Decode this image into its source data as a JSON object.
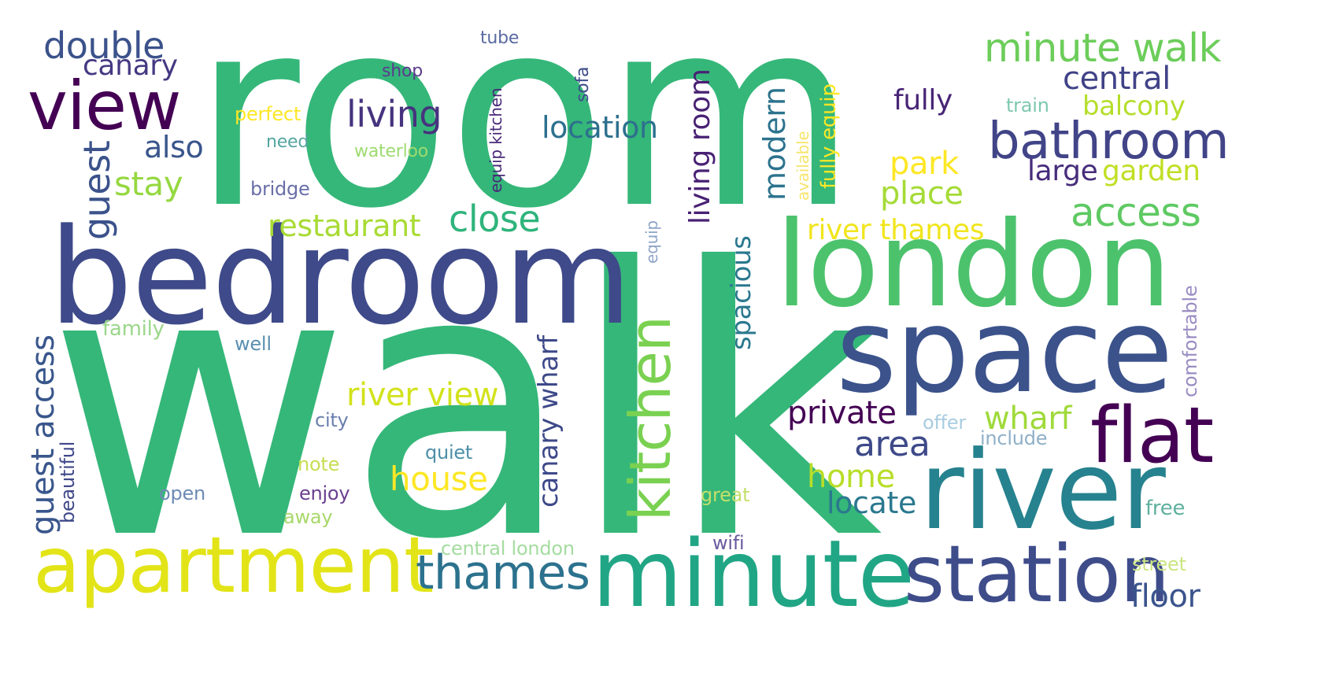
{
  "words": [
    {
      "text": "room",
      "color": "#35b779"
    },
    {
      "text": "walk",
      "color": "#35b779"
    },
    {
      "text": "bedroom",
      "color": "#3e4a89"
    },
    {
      "text": "london",
      "color": "#4cc26c"
    },
    {
      "text": "space",
      "color": "#3b528b"
    },
    {
      "text": "river",
      "color": "#26828e"
    },
    {
      "text": "minute",
      "color": "#21a685"
    },
    {
      "text": "station",
      "color": "#3e4c8a"
    },
    {
      "text": "apartment",
      "color": "#e2e418"
    },
    {
      "text": "kitchen",
      "color": "#7ad151"
    },
    {
      "text": "flat",
      "color": "#440154"
    },
    {
      "text": "view",
      "color": "#440154"
    },
    {
      "text": "bathroom",
      "color": "#414487"
    },
    {
      "text": "minute walk",
      "color": "#6ccd5a"
    },
    {
      "text": "thames",
      "color": "#2c728e"
    },
    {
      "text": "double",
      "color": "#3b528b"
    },
    {
      "text": "canary",
      "color": "#443983"
    },
    {
      "text": "central",
      "color": "#404387"
    },
    {
      "text": "living",
      "color": "#46337e"
    },
    {
      "text": "location",
      "color": "#2d708e"
    },
    {
      "text": "fully",
      "color": "#482576"
    },
    {
      "text": "balcony",
      "color": "#b5de2b"
    },
    {
      "text": "also",
      "color": "#39558c"
    },
    {
      "text": "stay",
      "color": "#95d840"
    },
    {
      "text": "park",
      "color": "#fde725"
    },
    {
      "text": "large",
      "color": "#472d7b"
    },
    {
      "text": "garden",
      "color": "#c0df25"
    },
    {
      "text": "place",
      "color": "#a5db36"
    },
    {
      "text": "access",
      "color": "#5ec962"
    },
    {
      "text": "close",
      "color": "#2fb47c"
    },
    {
      "text": "restaurant",
      "color": "#a8db34"
    },
    {
      "text": "river thames",
      "color": "#f1e51d"
    },
    {
      "text": "river view",
      "color": "#d2e21b"
    },
    {
      "text": "private",
      "color": "#440154"
    },
    {
      "text": "wharf",
      "color": "#9fda3a"
    },
    {
      "text": "area",
      "color": "#3e4a89"
    },
    {
      "text": "house",
      "color": "#fde725"
    },
    {
      "text": "home",
      "color": "#b8de29"
    },
    {
      "text": "locate",
      "color": "#2a788e"
    },
    {
      "text": "floor",
      "color": "#3a548c"
    },
    {
      "text": "guest",
      "color": "#3b528b"
    },
    {
      "text": "guest access",
      "color": "#39568c"
    },
    {
      "text": "beautiful",
      "color": "#3f4889"
    },
    {
      "text": "living room",
      "color": "#482173"
    },
    {
      "text": "modern",
      "color": "#2c738e"
    },
    {
      "text": "spacious",
      "color": "#2a788e"
    },
    {
      "text": "canary wharf",
      "color": "#3e4989"
    },
    {
      "text": "equip kitchen",
      "color": "#482878"
    },
    {
      "text": "sofa",
      "color": "#3e4c8a"
    },
    {
      "text": "tube",
      "color": "#5a6aa0"
    },
    {
      "text": "shop",
      "color": "#5b3b8c"
    },
    {
      "text": "perfect",
      "color": "#fde725"
    },
    {
      "text": "need",
      "color": "#54a5a0"
    },
    {
      "text": "waterloo",
      "color": "#9edb70"
    },
    {
      "text": "bridge",
      "color": "#6a6fa8"
    },
    {
      "text": "train",
      "color": "#7ec8b0"
    },
    {
      "text": "available",
      "color": "#f5e56a"
    },
    {
      "text": "fully equip",
      "color": "#fde725"
    },
    {
      "text": "equip",
      "color": "#8ea4c8"
    },
    {
      "text": "family",
      "color": "#9bd78b"
    },
    {
      "text": "well",
      "color": "#5a8fb0"
    },
    {
      "text": "city",
      "color": "#6a7fae"
    },
    {
      "text": "quiet",
      "color": "#4e8fa8"
    },
    {
      "text": "note",
      "color": "#c7de52"
    },
    {
      "text": "enjoy",
      "color": "#6a3f8f"
    },
    {
      "text": "away",
      "color": "#a8d86a"
    },
    {
      "text": "open",
      "color": "#6f8ab5"
    },
    {
      "text": "great",
      "color": "#c3df6a"
    },
    {
      "text": "central london",
      "color": "#a5dca0"
    },
    {
      "text": "wifi",
      "color": "#6a5a9e"
    },
    {
      "text": "offer",
      "color": "#a8cce0"
    },
    {
      "text": "include",
      "color": "#8fb0c8"
    },
    {
      "text": "free",
      "color": "#5fb09e"
    },
    {
      "text": "street",
      "color": "#cbe582"
    },
    {
      "text": "comfortable",
      "color": "#9a8cc2"
    }
  ]
}
